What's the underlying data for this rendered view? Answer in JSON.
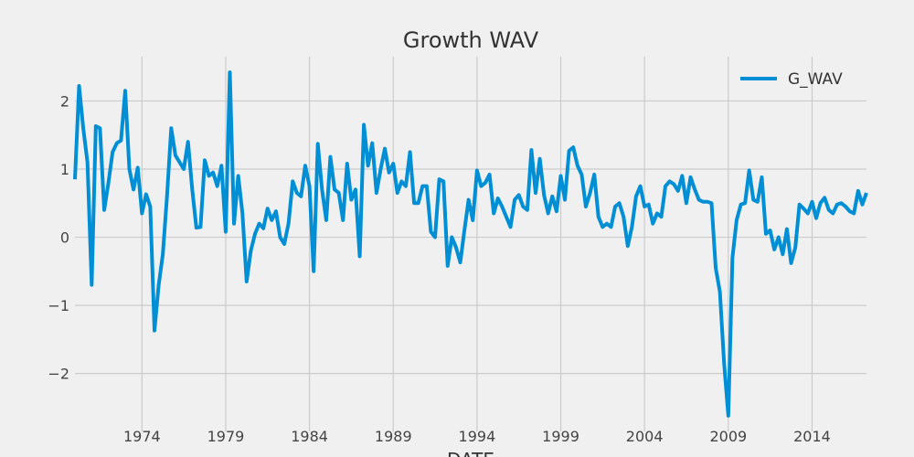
{
  "chart_data": {
    "type": "line",
    "title": "Growth WAV",
    "xlabel": "DATE",
    "ylabel": "",
    "xlim": [
      "1970-01-01",
      "2017-04-01"
    ],
    "ylim": [
      -2.85,
      2.65
    ],
    "x_ticks": [
      "1974",
      "1979",
      "1984",
      "1989",
      "1994",
      "1999",
      "2004",
      "2009",
      "2014"
    ],
    "y_ticks": [
      -2,
      -1,
      0,
      1,
      2
    ],
    "grid": true,
    "legend_position": "top-right",
    "colors": {
      "series": "#008fd5",
      "background": "#f0f0f0",
      "grid": "#cbcbcb"
    },
    "series": [
      {
        "name": "G_WAV",
        "x": [
          "1970-01-01",
          "1970-04-01",
          "1970-07-01",
          "1970-10-01",
          "1971-01-01",
          "1971-04-01",
          "1971-07-01",
          "1971-10-01",
          "1972-01-01",
          "1972-04-01",
          "1972-07-01",
          "1972-10-01",
          "1973-01-01",
          "1973-04-01",
          "1973-07-01",
          "1973-10-01",
          "1974-01-01",
          "1974-04-01",
          "1974-07-01",
          "1974-10-01",
          "1975-01-01",
          "1975-04-01",
          "1975-07-01",
          "1975-10-01",
          "1976-01-01",
          "1976-04-01",
          "1976-07-01",
          "1976-10-01",
          "1977-01-01",
          "1977-04-01",
          "1977-07-01",
          "1977-10-01",
          "1978-01-01",
          "1978-04-01",
          "1978-07-01",
          "1978-10-01",
          "1979-01-01",
          "1979-04-01",
          "1979-07-01",
          "1979-10-01",
          "1980-01-01",
          "1980-04-01",
          "1980-07-01",
          "1980-10-01",
          "1981-01-01",
          "1981-04-01",
          "1981-07-01",
          "1981-10-01",
          "1982-01-01",
          "1982-04-01",
          "1982-07-01",
          "1982-10-01",
          "1983-01-01",
          "1983-04-01",
          "1983-07-01",
          "1983-10-01",
          "1984-01-01",
          "1984-04-01",
          "1984-07-01",
          "1984-10-01",
          "1985-01-01",
          "1985-04-01",
          "1985-07-01",
          "1985-10-01",
          "1986-01-01",
          "1986-04-01",
          "1986-07-01",
          "1986-10-01",
          "1987-01-01",
          "1987-04-01",
          "1987-07-01",
          "1987-10-01",
          "1988-01-01",
          "1988-04-01",
          "1988-07-01",
          "1988-10-01",
          "1989-01-01",
          "1989-04-01",
          "1989-07-01",
          "1989-10-01",
          "1990-01-01",
          "1990-04-01",
          "1990-07-01",
          "1990-10-01",
          "1991-01-01",
          "1991-04-01",
          "1991-07-01",
          "1991-10-01",
          "1992-01-01",
          "1992-04-01",
          "1992-07-01",
          "1992-10-01",
          "1993-01-01",
          "1993-04-01",
          "1993-07-01",
          "1993-10-01",
          "1994-01-01",
          "1994-04-01",
          "1994-07-01",
          "1994-10-01",
          "1995-01-01",
          "1995-04-01",
          "1995-07-01",
          "1995-10-01",
          "1996-01-01",
          "1996-04-01",
          "1996-07-01",
          "1996-10-01",
          "1997-01-01",
          "1997-04-01",
          "1997-07-01",
          "1997-10-01",
          "1998-01-01",
          "1998-04-01",
          "1998-07-01",
          "1998-10-01",
          "1999-01-01",
          "1999-04-01",
          "1999-07-01",
          "1999-10-01",
          "2000-01-01",
          "2000-04-01",
          "2000-07-01",
          "2000-10-01",
          "2001-01-01",
          "2001-04-01",
          "2001-07-01",
          "2001-10-01",
          "2002-01-01",
          "2002-04-01",
          "2002-07-01",
          "2002-10-01",
          "2003-01-01",
          "2003-04-01",
          "2003-07-01",
          "2003-10-01",
          "2004-01-01",
          "2004-04-01",
          "2004-07-01",
          "2004-10-01",
          "2005-01-01",
          "2005-04-01",
          "2005-07-01",
          "2005-10-01",
          "2006-01-01",
          "2006-04-01",
          "2006-07-01",
          "2006-10-01",
          "2007-01-01",
          "2007-04-01",
          "2007-07-01",
          "2007-10-01",
          "2008-01-01",
          "2008-04-01",
          "2008-07-01",
          "2008-10-01",
          "2009-01-01",
          "2009-04-01",
          "2009-07-01",
          "2009-10-01",
          "2010-01-01",
          "2010-04-01",
          "2010-07-01",
          "2010-10-01",
          "2011-01-01",
          "2011-04-01",
          "2011-07-01",
          "2011-10-01",
          "2012-01-01",
          "2012-04-01",
          "2012-07-01",
          "2012-10-01",
          "2013-01-01",
          "2013-04-01",
          "2013-07-01",
          "2013-10-01",
          "2014-01-01",
          "2014-04-01",
          "2014-07-01",
          "2014-10-01",
          "2015-01-01",
          "2015-04-01",
          "2015-07-01",
          "2015-10-01",
          "2016-01-01",
          "2016-04-01",
          "2016-07-01",
          "2016-10-01",
          "2017-01-01",
          "2017-04-01"
        ],
        "values": [
          0.85,
          2.22,
          1.6,
          1.1,
          -0.7,
          1.63,
          1.6,
          0.4,
          0.8,
          1.25,
          1.38,
          1.42,
          2.15,
          1.0,
          0.7,
          1.02,
          0.35,
          0.63,
          0.45,
          -1.37,
          -0.7,
          -0.25,
          0.6,
          1.6,
          1.2,
          1.1,
          1.0,
          1.4,
          0.7,
          0.14,
          0.15,
          1.13,
          0.9,
          0.95,
          0.75,
          1.05,
          0.08,
          2.42,
          0.2,
          0.9,
          0.35,
          -0.65,
          -0.2,
          0.05,
          0.2,
          0.13,
          0.42,
          0.25,
          0.38,
          0.0,
          -0.1,
          0.2,
          0.82,
          0.65,
          0.6,
          1.05,
          0.75,
          -0.5,
          1.37,
          0.7,
          0.25,
          1.18,
          0.7,
          0.65,
          0.25,
          1.08,
          0.55,
          0.7,
          -0.28,
          1.65,
          1.05,
          1.38,
          0.65,
          1.0,
          1.3,
          0.95,
          1.08,
          0.65,
          0.82,
          0.75,
          1.25,
          0.5,
          0.5,
          0.75,
          0.75,
          0.08,
          0.0,
          0.85,
          0.82,
          -0.42,
          0.0,
          -0.15,
          -0.37,
          0.1,
          0.55,
          0.25,
          0.98,
          0.75,
          0.8,
          0.92,
          0.35,
          0.57,
          0.45,
          0.3,
          0.15,
          0.55,
          0.62,
          0.45,
          0.4,
          1.28,
          0.65,
          1.15,
          0.62,
          0.35,
          0.6,
          0.38,
          0.9,
          0.55,
          1.27,
          1.32,
          1.05,
          0.92,
          0.45,
          0.65,
          0.92,
          0.3,
          0.15,
          0.2,
          0.15,
          0.45,
          0.5,
          0.3,
          -0.13,
          0.15,
          0.6,
          0.75,
          0.45,
          0.48,
          0.2,
          0.35,
          0.3,
          0.75,
          0.82,
          0.78,
          0.68,
          0.9,
          0.5,
          0.88,
          0.7,
          0.55,
          0.52,
          0.52,
          0.5,
          -0.45,
          -0.8,
          -1.85,
          -2.62,
          -0.3,
          0.25,
          0.48,
          0.5,
          0.98,
          0.55,
          0.52,
          0.88,
          0.05,
          0.1,
          -0.18,
          0.0,
          -0.25,
          0.12,
          -0.38,
          -0.15,
          0.48,
          0.42,
          0.35,
          0.52,
          0.28,
          0.5,
          0.58,
          0.4,
          0.35,
          0.48,
          0.5,
          0.45,
          0.38,
          0.35,
          0.68,
          0.48,
          0.65
        ]
      }
    ]
  }
}
